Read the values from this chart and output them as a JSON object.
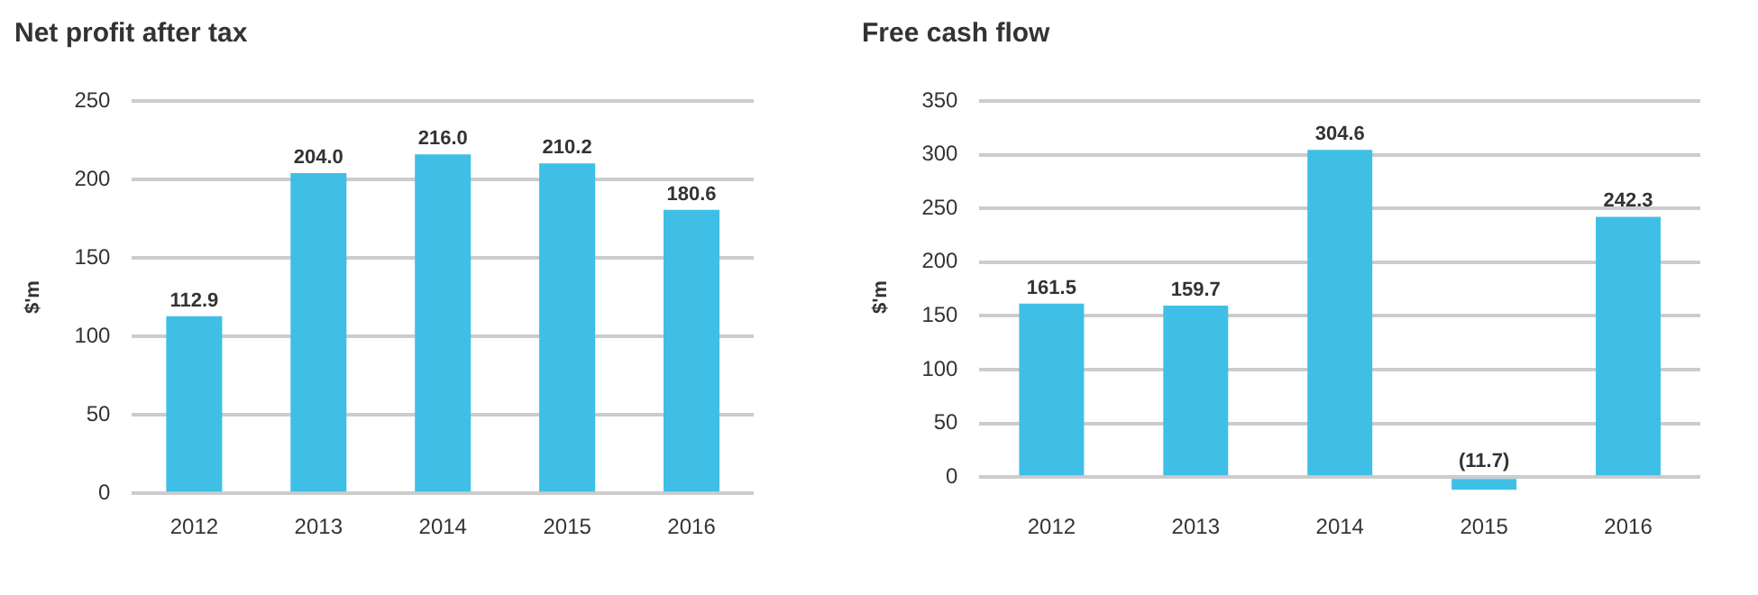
{
  "chart_data": [
    {
      "type": "bar",
      "title": "Net profit after tax",
      "ylabel": "$'m",
      "categories": [
        "2012",
        "2013",
        "2014",
        "2015",
        "2016"
      ],
      "values": [
        112.9,
        204.0,
        216.0,
        210.2,
        180.6
      ],
      "value_labels": [
        "112.9",
        "204.0",
        "216.0",
        "210.2",
        "180.6"
      ],
      "color": "#3fbfe6",
      "ylim": [
        0,
        250
      ],
      "yticks": [
        0,
        50,
        100,
        150,
        200,
        250
      ],
      "grid": "y",
      "legend": false
    },
    {
      "type": "bar",
      "title": "Free cash flow",
      "ylabel": "$'m",
      "categories": [
        "2012",
        "2013",
        "2014",
        "2015",
        "2016"
      ],
      "values": [
        161.5,
        159.7,
        304.6,
        -11.7,
        242.3
      ],
      "value_labels": [
        "161.5",
        "159.7",
        "304.6",
        "(11.7)",
        "242.3"
      ],
      "color": "#3fbfe6",
      "ylim": [
        -15,
        350
      ],
      "yticks": [
        0,
        50,
        100,
        150,
        200,
        250,
        300,
        350
      ],
      "grid": "y",
      "legend": false
    }
  ]
}
